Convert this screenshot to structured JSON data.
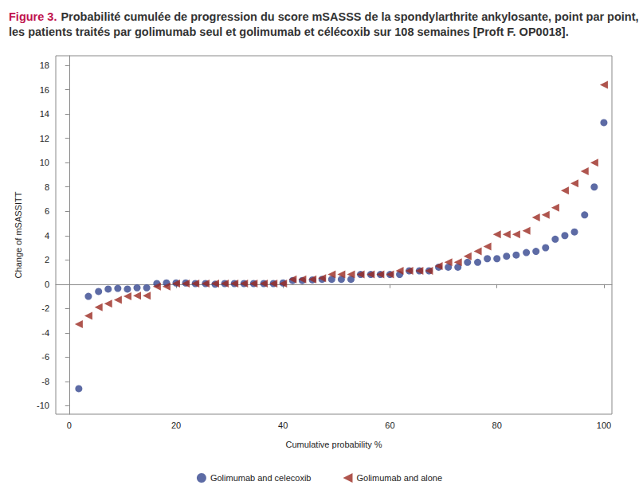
{
  "chart_data": {
    "type": "scatter",
    "title_label": "Figure 3.",
    "title": [
      "Probabilité cumulée de progression du score mSASSS de la spondylarthrite ankylosante, point par point, entre",
      "les patients traités par golimumab seul et golimumab et célécoxib sur 108 semaines [Proft F. OP0018]."
    ],
    "x_label": "Cumulative probability %",
    "y_label": "Change of mSASSITT",
    "xlim": [
      -2.5,
      101.5
    ],
    "xticks": [
      0,
      20,
      40,
      60,
      80,
      100
    ],
    "ylim": [
      -10.7,
      18.8
    ],
    "yticks": [
      -10,
      -8,
      -6,
      -4,
      -2,
      0,
      2,
      4,
      6,
      8,
      10,
      12,
      14,
      16,
      18
    ],
    "grid": false,
    "legend": "bottom",
    "series": [
      {
        "name": "Golimumab and celecoxib",
        "color": "#34468f",
        "marker": "circle",
        "x": [
          1.8,
          3.6,
          5.5,
          7.3,
          9.1,
          10.9,
          12.7,
          14.5,
          16.4,
          18.2,
          20.0,
          21.8,
          23.6,
          25.5,
          27.3,
          29.1,
          30.9,
          32.7,
          34.5,
          36.4,
          38.2,
          40.0,
          41.8,
          43.6,
          45.5,
          47.3,
          49.1,
          50.9,
          52.7,
          54.5,
          56.4,
          58.2,
          60.0,
          61.8,
          63.6,
          65.5,
          67.3,
          69.1,
          70.9,
          72.7,
          74.5,
          76.4,
          78.2,
          80.0,
          81.8,
          83.6,
          85.5,
          87.3,
          89.1,
          90.9,
          92.7,
          94.5,
          96.4,
          98.2,
          100
        ],
        "values": [
          -8.6,
          -1.0,
          -0.6,
          -0.4,
          -0.35,
          -0.4,
          -0.3,
          -0.3,
          0.05,
          0.1,
          0.1,
          0.1,
          0.05,
          0.05,
          0.0,
          0.05,
          0.05,
          0.05,
          0.05,
          0.05,
          0.05,
          0.1,
          0.3,
          0.3,
          0.35,
          0.4,
          0.4,
          0.4,
          0.4,
          0.8,
          0.8,
          0.8,
          0.8,
          0.8,
          1.1,
          1.1,
          1.1,
          1.4,
          1.4,
          1.4,
          1.8,
          1.8,
          2.1,
          2.1,
          2.3,
          2.4,
          2.6,
          2.7,
          3.0,
          3.7,
          4.0,
          4.3,
          5.7,
          8.0,
          13.3
        ]
      },
      {
        "name": "Golimumab and alone",
        "color": "#9b2a22",
        "marker": "triangle-left",
        "x": [
          1.8,
          3.6,
          5.5,
          7.3,
          9.1,
          10.9,
          12.7,
          14.5,
          16.4,
          18.2,
          20.0,
          21.8,
          23.6,
          25.5,
          27.3,
          29.1,
          30.9,
          32.7,
          34.5,
          36.4,
          38.2,
          40.0,
          41.8,
          43.6,
          45.5,
          47.3,
          49.1,
          50.9,
          52.7,
          54.5,
          56.4,
          58.2,
          60.0,
          61.8,
          63.6,
          65.5,
          67.3,
          69.1,
          70.9,
          72.7,
          74.5,
          76.4,
          78.2,
          80.0,
          81.8,
          83.6,
          85.5,
          87.3,
          89.1,
          90.9,
          92.7,
          94.5,
          96.4,
          98.2,
          100
        ],
        "values": [
          -3.3,
          -2.6,
          -1.9,
          -1.6,
          -1.3,
          -1.0,
          -0.95,
          -0.95,
          -0.2,
          -0.2,
          0.05,
          0.05,
          0.05,
          0.05,
          0.05,
          0.05,
          0.05,
          0.05,
          0.05,
          0.05,
          0.05,
          0.05,
          0.4,
          0.4,
          0.4,
          0.5,
          0.8,
          0.8,
          0.8,
          0.8,
          0.8,
          0.8,
          0.8,
          1.1,
          1.1,
          1.1,
          1.1,
          1.5,
          1.8,
          1.8,
          2.3,
          2.7,
          3.1,
          4.1,
          4.1,
          4.1,
          4.4,
          5.5,
          5.7,
          6.3,
          7.7,
          8.3,
          9.3,
          10.0,
          16.4
        ]
      }
    ]
  }
}
